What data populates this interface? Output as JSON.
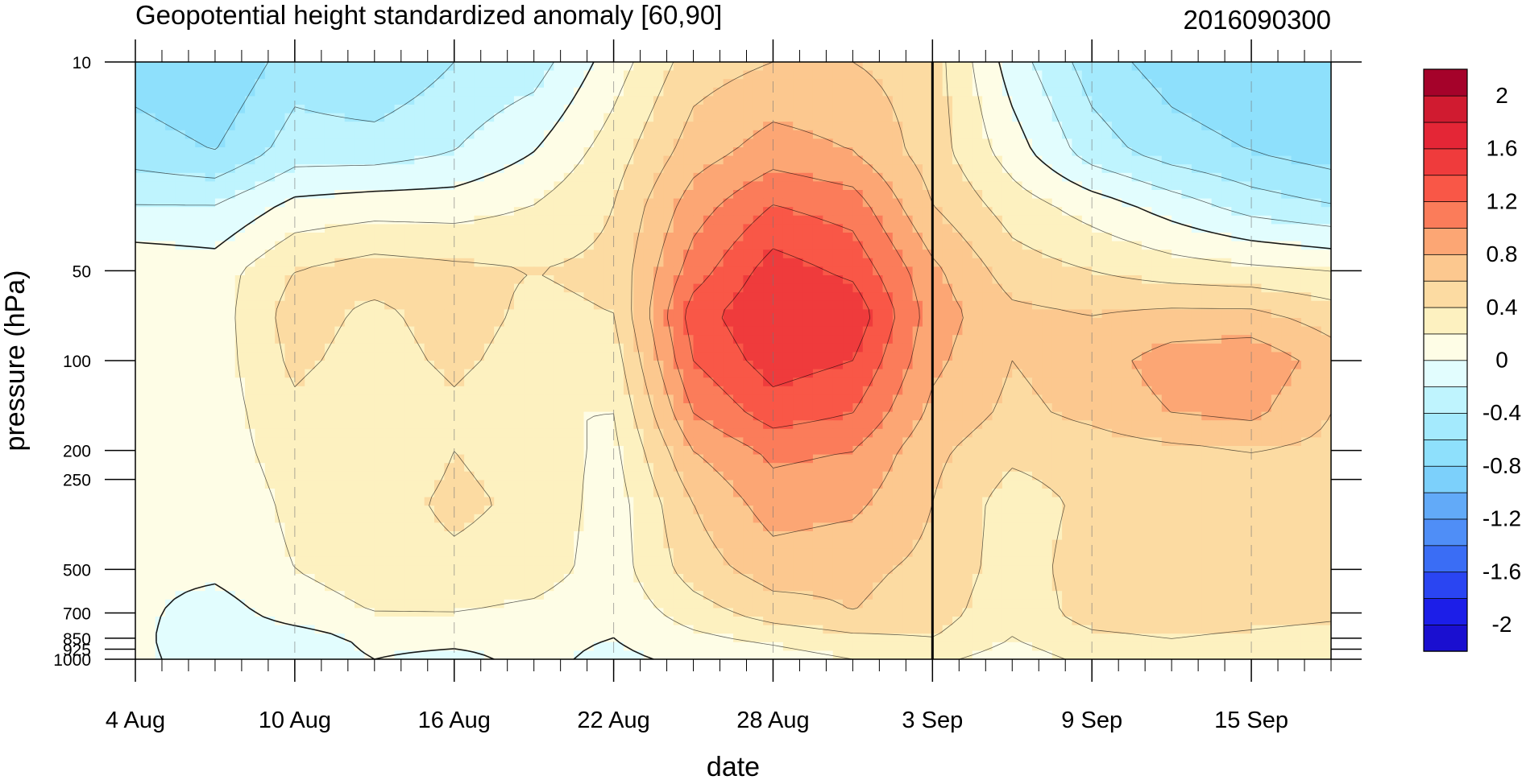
{
  "chart_data": {
    "type": "heatmap",
    "subtype": "time-pressure filled contour",
    "title": "Geopotential height standardized anomaly [60,90]",
    "date_label": "2016090300",
    "xlabel": "date",
    "ylabel": "pressure (hPa)",
    "y_scale": "log",
    "y_inverted": true,
    "ylim": [
      1000,
      10
    ],
    "xlim": [
      "2016-08-04",
      "2016-09-18"
    ],
    "x_ticks": [
      "4 Aug",
      "10 Aug",
      "16 Aug",
      "22 Aug",
      "28 Aug",
      "3 Sep",
      "9 Sep",
      "15 Sep"
    ],
    "x_tick_dates": [
      "2016-08-04",
      "2016-08-10",
      "2016-08-16",
      "2016-08-22",
      "2016-08-28",
      "2016-09-03",
      "2016-09-09",
      "2016-09-15"
    ],
    "y_ticks": [
      10,
      50,
      100,
      200,
      250,
      500,
      700,
      850,
      925,
      1000
    ],
    "marked_date": "2016-09-03",
    "colorbar": {
      "levels": [
        -2.2,
        -2,
        -1.8,
        -1.6,
        -1.4,
        -1.2,
        -1,
        -0.8,
        -0.6,
        -0.4,
        -0.2,
        0,
        0.2,
        0.4,
        0.6,
        0.8,
        1,
        1.2,
        1.4,
        1.6,
        1.8,
        2,
        2.2
      ],
      "labels": [
        -2,
        -1.6,
        -1.2,
        -0.8,
        -0.4,
        0,
        0.4,
        0.8,
        1.2,
        1.6,
        2
      ],
      "colors": [
        "#1a0fd0",
        "#1c1ee8",
        "#2a45f2",
        "#3a6df5",
        "#4f8ef7",
        "#62aaf8",
        "#7cd0fb",
        "#8ee0fc",
        "#a4eafd",
        "#bff4fe",
        "#e2fdfe",
        "#fefde6",
        "#fdf1c0",
        "#fcdba2",
        "#fcc88f",
        "#fca674",
        "#fb7c5a",
        "#f95747",
        "#ef3b3c",
        "#e42636",
        "#d01b30",
        "#a5022a"
      ]
    },
    "field": {
      "dates": [
        "2016-08-04",
        "2016-08-07",
        "2016-08-10",
        "2016-08-13",
        "2016-08-16",
        "2016-08-19",
        "2016-08-22",
        "2016-08-25",
        "2016-08-28",
        "2016-08-31",
        "2016-09-03",
        "2016-09-06",
        "2016-09-09",
        "2016-09-12",
        "2016-09-15",
        "2016-09-18"
      ],
      "pressures": [
        10,
        20,
        30,
        50,
        70,
        100,
        150,
        200,
        300,
        500,
        700,
        850,
        1000
      ],
      "values": [
        [
          -0.7,
          -0.8,
          -0.5,
          -0.6,
          -0.4,
          -0.3,
          0.1,
          0.5,
          0.6,
          0.6,
          0.5,
          -0.1,
          -0.5,
          -0.7,
          -0.8,
          -0.8
        ],
        [
          -0.5,
          -0.6,
          -0.3,
          -0.3,
          -0.2,
          0.0,
          0.3,
          0.7,
          0.9,
          0.8,
          0.5,
          0.1,
          -0.3,
          -0.5,
          -0.6,
          -0.7
        ],
        [
          -0.2,
          -0.2,
          0.05,
          0.1,
          0.1,
          0.2,
          0.4,
          0.9,
          1.2,
          1.1,
          0.6,
          0.3,
          0.1,
          -0.1,
          -0.3,
          -0.4
        ],
        [
          0.15,
          0.1,
          0.4,
          0.5,
          0.45,
          0.4,
          0.45,
          1.1,
          1.5,
          1.35,
          0.85,
          0.5,
          0.4,
          0.3,
          0.25,
          0.2
        ],
        [
          0.2,
          0.1,
          0.5,
          0.35,
          0.5,
          0.35,
          0.4,
          1.3,
          1.6,
          1.55,
          0.9,
          0.65,
          0.6,
          0.65,
          0.65,
          0.5
        ],
        [
          0.15,
          0.1,
          0.45,
          0.3,
          0.45,
          0.3,
          0.3,
          1.2,
          1.5,
          1.4,
          0.85,
          0.6,
          0.7,
          0.9,
          0.95,
          0.7
        ],
        [
          0.1,
          0.1,
          0.35,
          0.2,
          0.35,
          0.2,
          0.2,
          1.0,
          1.3,
          1.2,
          0.75,
          0.55,
          0.65,
          0.8,
          0.85,
          0.6
        ],
        [
          0.1,
          0.1,
          0.3,
          0.2,
          0.4,
          0.3,
          0.15,
          0.8,
          1.05,
          1.0,
          0.65,
          0.45,
          0.5,
          0.55,
          0.6,
          0.55
        ],
        [
          0.1,
          0.05,
          0.25,
          0.3,
          0.45,
          0.35,
          0.1,
          0.6,
          0.9,
          0.85,
          0.6,
          0.3,
          0.45,
          0.5,
          0.5,
          0.5
        ],
        [
          0.05,
          0.05,
          0.2,
          0.3,
          0.35,
          0.3,
          0.1,
          0.5,
          0.7,
          0.65,
          0.55,
          0.3,
          0.5,
          0.5,
          0.5,
          0.45
        ],
        [
          0.05,
          -0.1,
          0.1,
          0.2,
          0.2,
          0.15,
          0.05,
          0.3,
          0.5,
          0.6,
          0.5,
          0.25,
          0.5,
          0.55,
          0.5,
          0.45
        ],
        [
          0.05,
          -0.15,
          -0.1,
          0.05,
          0.05,
          0.05,
          0.0,
          0.15,
          0.25,
          0.35,
          0.4,
          0.2,
          0.35,
          0.4,
          0.35,
          0.3
        ],
        [
          0.05,
          -0.1,
          -0.1,
          0.0,
          -0.05,
          0.05,
          -0.05,
          0.05,
          0.1,
          0.2,
          0.25,
          0.1,
          0.25,
          0.3,
          0.25,
          0.2
        ]
      ]
    }
  }
}
